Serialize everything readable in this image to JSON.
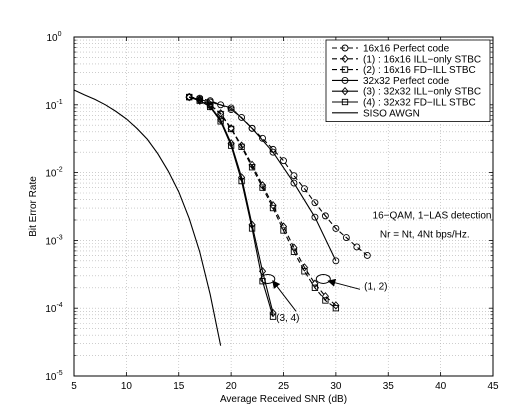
{
  "chart_data": {
    "type": "line",
    "title": "",
    "xlabel": "Average Received SNR (dB)",
    "ylabel": "Bit Error Rate",
    "xlim": [
      5,
      45
    ],
    "ylim": [
      1e-05,
      1
    ],
    "yscale": "log",
    "grid": true,
    "legend_placement": "top-right",
    "x_ticks": [
      "5",
      "10",
      "15",
      "20",
      "25",
      "30",
      "35",
      "40",
      "45"
    ],
    "y_ticks": [
      {
        "value": 1,
        "base": "10",
        "exp": "0"
      },
      {
        "value": 0.1,
        "base": "10",
        "exp": "-1"
      },
      {
        "value": 0.01,
        "base": "10",
        "exp": "-2"
      },
      {
        "value": 0.001,
        "base": "10",
        "exp": "-3"
      },
      {
        "value": 0.0001,
        "base": "10",
        "exp": "-4"
      },
      {
        "value": 1e-05,
        "base": "10",
        "exp": "-5"
      }
    ],
    "series": [
      {
        "name": "16x16 Perfect code",
        "style": "dashed",
        "marker": "circle",
        "x": [
          16,
          17,
          18,
          19,
          20,
          21,
          22,
          23,
          24,
          25,
          26,
          27,
          28,
          29,
          30,
          31,
          32,
          33
        ],
        "y": [
          0.13,
          0.125,
          0.115,
          0.1,
          0.085,
          0.065,
          0.045,
          0.032,
          0.022,
          0.015,
          0.009,
          0.0058,
          0.0036,
          0.0023,
          0.0015,
          0.0011,
          0.0008,
          0.0006
        ]
      },
      {
        "name": "(1) : 16x16 ILL−only STBC",
        "style": "dashed",
        "marker": "diamond",
        "x": [
          16,
          17,
          18,
          19,
          20,
          21,
          22,
          23,
          24,
          25,
          26,
          27,
          28,
          29,
          30
        ],
        "y": [
          0.13,
          0.12,
          0.1,
          0.075,
          0.045,
          0.025,
          0.013,
          0.0065,
          0.0033,
          0.0016,
          0.00078,
          0.0004,
          0.00023,
          0.00015,
          0.00011
        ]
      },
      {
        "name": "(2) : 16x16 FD−ILL STBC",
        "style": "dashed",
        "marker": "square",
        "x": [
          16,
          17,
          18,
          19,
          20,
          21,
          22,
          23,
          24,
          25,
          26,
          27,
          28,
          29,
          30
        ],
        "y": [
          0.13,
          0.12,
          0.1,
          0.073,
          0.044,
          0.024,
          0.012,
          0.006,
          0.003,
          0.0014,
          0.00068,
          0.00035,
          0.0002,
          0.00013,
          0.0001
        ]
      },
      {
        "name": "32x32 Perfect code",
        "style": "solid",
        "marker": "circle",
        "x": [
          16,
          18,
          20,
          22,
          24,
          26,
          28,
          30
        ],
        "y": [
          0.13,
          0.11,
          0.09,
          0.045,
          0.02,
          0.007,
          0.0022,
          0.0005
        ]
      },
      {
        "name": "(3) : 32x32 ILL−only STBC",
        "style": "solid",
        "marker": "diamond",
        "x": [
          16,
          17,
          18,
          19,
          20,
          21,
          22,
          23,
          24
        ],
        "y": [
          0.13,
          0.115,
          0.095,
          0.06,
          0.027,
          0.0085,
          0.0017,
          0.00035,
          8.5e-05
        ]
      },
      {
        "name": "(4) : 32x32 FD−ILL STBC",
        "style": "solid",
        "marker": "square",
        "x": [
          16,
          17,
          18,
          19,
          20,
          21,
          22,
          23,
          24
        ],
        "y": [
          0.13,
          0.115,
          0.093,
          0.057,
          0.025,
          0.0075,
          0.0015,
          0.00025,
          7.5e-05
        ]
      },
      {
        "name": "SISO AWGN",
        "style": "solid",
        "marker": "none",
        "x": [
          5,
          6,
          7,
          8,
          9,
          10,
          11,
          12,
          13,
          14,
          15,
          16,
          17,
          18,
          19
        ],
        "y": [
          0.165,
          0.14,
          0.12,
          0.1,
          0.08,
          0.062,
          0.045,
          0.031,
          0.019,
          0.0105,
          0.0052,
          0.0021,
          0.00068,
          0.00016,
          2.8e-05
        ]
      }
    ],
    "annotations": [
      {
        "text": "16−QAM, 1−LAS detection",
        "x": 33.5,
        "y": 0.0021
      },
      {
        "text": "Nr = Nt, 4Nt bps/Hz.",
        "x": 34.2,
        "y": 0.0011
      },
      {
        "text": "(1, 2)",
        "x": 32.7,
        "y": 0.00019
      },
      {
        "text": "(3, 4)",
        "x": 24.3,
        "y": 6.5e-05
      }
    ],
    "ellipses": [
      {
        "label": "(3, 4)",
        "cx": 23.5,
        "cy": 0.00027,
        "arrow_to": [
          26.2,
          9e-05
        ]
      },
      {
        "label": "(1, 2)",
        "cx": 28.8,
        "cy": 0.00027,
        "arrow_to": [
          32.3,
          0.00019
        ]
      }
    ]
  }
}
